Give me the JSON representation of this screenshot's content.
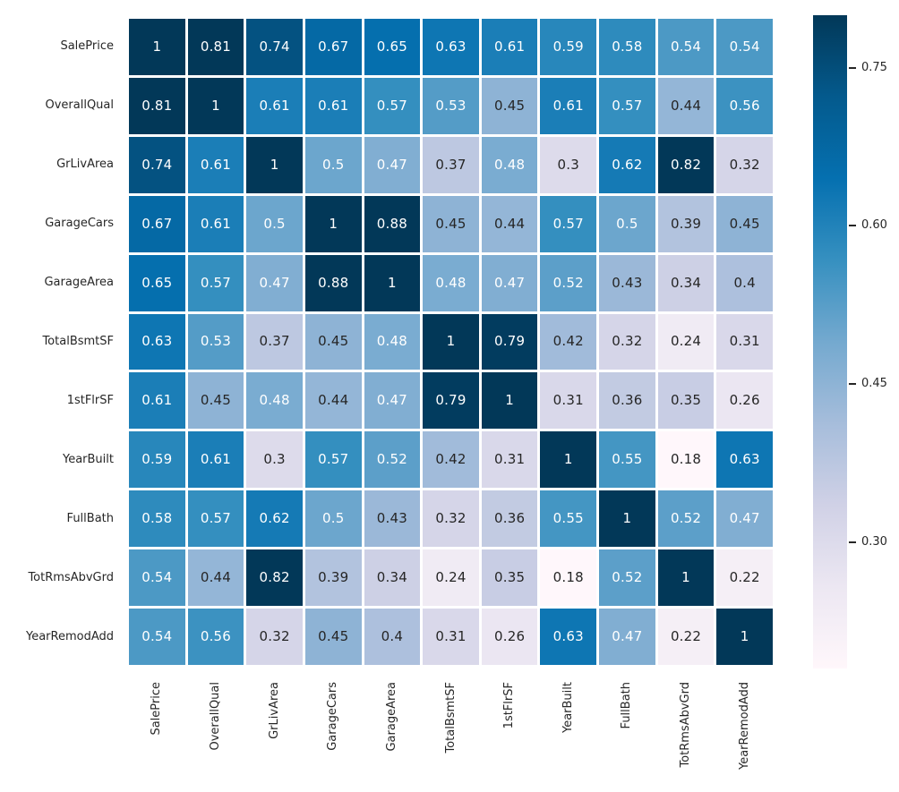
{
  "chart_data": {
    "type": "heatmap",
    "description": "correlation-matrix-heatmap",
    "labels": [
      "SalePrice",
      "OverallQual",
      "GrLivArea",
      "GarageCars",
      "GarageArea",
      "TotalBsmtSF",
      "1stFlrSF",
      "YearBuilt",
      "FullBath",
      "TotRmsAbvGrd",
      "YearRemodAdd"
    ],
    "matrix": [
      [
        1,
        0.81,
        0.74,
        0.67,
        0.65,
        0.63,
        0.61,
        0.59,
        0.58,
        0.54,
        0.54
      ],
      [
        0.81,
        1,
        0.61,
        0.61,
        0.57,
        0.53,
        0.45,
        0.61,
        0.57,
        0.44,
        0.56
      ],
      [
        0.74,
        0.61,
        1,
        0.5,
        0.47,
        0.37,
        0.48,
        0.3,
        0.62,
        0.82,
        0.32
      ],
      [
        0.67,
        0.61,
        0.5,
        1,
        0.88,
        0.45,
        0.44,
        0.57,
        0.5,
        0.39,
        0.45
      ],
      [
        0.65,
        0.57,
        0.47,
        0.88,
        1,
        0.48,
        0.47,
        0.52,
        0.43,
        0.34,
        0.4
      ],
      [
        0.63,
        0.53,
        0.37,
        0.45,
        0.48,
        1,
        0.79,
        0.42,
        0.32,
        0.24,
        0.31
      ],
      [
        0.61,
        0.45,
        0.48,
        0.44,
        0.47,
        0.79,
        1,
        0.31,
        0.36,
        0.35,
        0.26
      ],
      [
        0.59,
        0.61,
        0.3,
        0.57,
        0.52,
        0.42,
        0.31,
        1,
        0.55,
        0.18,
        0.63
      ],
      [
        0.58,
        0.57,
        0.62,
        0.5,
        0.43,
        0.32,
        0.36,
        0.55,
        1,
        0.52,
        0.47
      ],
      [
        0.54,
        0.44,
        0.82,
        0.39,
        0.34,
        0.24,
        0.35,
        0.18,
        0.52,
        1,
        0.22
      ],
      [
        0.54,
        0.56,
        0.32,
        0.45,
        0.4,
        0.31,
        0.26,
        0.63,
        0.47,
        0.22,
        1
      ]
    ],
    "colormap": {
      "name": "PuBu",
      "stops": [
        "#fff7fb",
        "#ece7f2",
        "#d0d1e6",
        "#a6bddb",
        "#74a9cf",
        "#3690c0",
        "#0570b0",
        "#045a8d",
        "#023858"
      ],
      "vmin": 0.18,
      "vmax": 0.8
    },
    "colorbar": {
      "ticks": [
        {
          "value": 0.75,
          "label": "0.75"
        },
        {
          "value": 0.6,
          "label": "0.60"
        },
        {
          "value": 0.45,
          "label": "0.45"
        },
        {
          "value": 0.3,
          "label": "0.30"
        }
      ]
    },
    "annotation_text_colors": {
      "on_dark": "#ffffff",
      "on_light": "#262626"
    },
    "grid_line_color": "#ffffff",
    "background": "#ffffff"
  }
}
